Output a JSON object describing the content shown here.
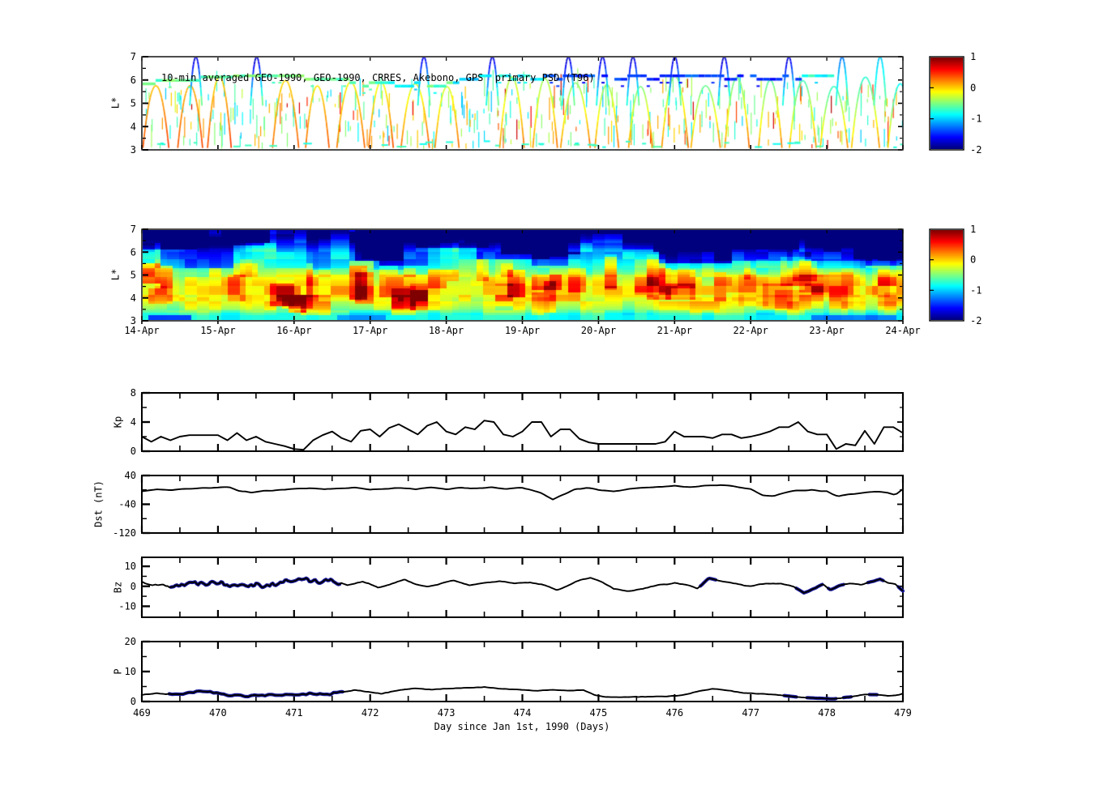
{
  "figure": {
    "background": "#ffffff"
  },
  "chart_data": [
    {
      "id": "psd_scatter",
      "type": "scatter",
      "title": "10-min averaged GEO-1990, GEO-1990, CRRES, Akebono, GPS  primary PSD (T96)",
      "ylabel": "L*",
      "ylim": [
        3,
        7
      ],
      "yticks": [
        3,
        4,
        5,
        6,
        7
      ],
      "clim": [
        -2,
        1
      ],
      "colormap": "jet",
      "colorbar_ticks": [
        1,
        0,
        -1,
        -2
      ],
      "params": {
        "seed": 7,
        "dash_count": 360,
        "arc_count": 24,
        "arc_period": 0.425,
        "tall_arcs": [
          [
            0.7,
            -1.8
          ],
          [
            1.5,
            -1.85
          ],
          [
            3.7,
            -1.7
          ],
          [
            4.6,
            -1.8
          ],
          [
            5.6,
            -1.85
          ],
          [
            6.05,
            -1.8
          ],
          [
            6.45,
            -1.85
          ],
          [
            7.0,
            -1.8
          ],
          [
            7.65,
            -1.85
          ],
          [
            8.5,
            -1.8
          ],
          [
            9.2,
            -1.3
          ],
          [
            9.7,
            -1.05
          ]
        ],
        "geo_segments": [
          [
            0,
            3.0,
            -0.55
          ],
          [
            3.0,
            3.6,
            -0.9
          ],
          [
            3.6,
            4.05,
            -0.6
          ],
          [
            4.05,
            4.6,
            -1.05
          ],
          [
            4.6,
            5.2,
            -0.85
          ],
          [
            5.2,
            8.6,
            -1.45
          ],
          [
            8.6,
            9.05,
            -0.8
          ]
        ]
      }
    },
    {
      "id": "psd_spectrogram",
      "type": "heatmap",
      "ylabel": "L*",
      "ylim": [
        3,
        7
      ],
      "yticks": [
        3,
        4,
        5,
        6,
        7
      ],
      "clim": [
        -2,
        1
      ],
      "colormap": "jet",
      "colorbar_ticks": [
        1,
        0,
        -1,
        -2
      ],
      "x_tick_labels": [
        "14-Apr",
        "15-Apr",
        "16-Apr",
        "17-Apr",
        "18-Apr",
        "19-Apr",
        "20-Apr",
        "21-Apr",
        "22-Apr",
        "23-Apr",
        "24-Apr"
      ],
      "params": {
        "seed": 11,
        "profile_L": [
          3.0,
          3.2,
          3.4,
          3.7,
          4.0,
          4.3,
          4.6,
          4.9,
          5.2,
          5.5,
          5.8,
          6.1,
          6.4,
          6.7,
          7.0
        ],
        "profile_v": [
          -0.8,
          -0.85,
          -0.45,
          -0.2,
          -0.1,
          -0.05,
          -0.1,
          -0.25,
          -0.5,
          -0.7,
          -0.8,
          -0.95,
          -1.35,
          -1.7,
          -1.85
        ],
        "late_depression_start": 4.3,
        "late_depression_rate": 0.12,
        "orange_blobs": 55,
        "dark_patches": 28,
        "noise_amp": 0.22,
        "bottom_dark": [
          [
            0.12,
            0.62,
            -1.45
          ],
          [
            2.55,
            3.2,
            -1.15
          ],
          [
            8.8,
            9.9,
            -1.25
          ]
        ]
      }
    },
    {
      "id": "kp",
      "type": "line",
      "ylabel": "Kp",
      "ylim": [
        0,
        8
      ],
      "yticks": [
        0,
        4,
        8
      ],
      "yticks_minor": [
        2,
        6
      ],
      "t0": 469,
      "dt": 0.125,
      "values": [
        2.0,
        1.3,
        2.0,
        1.5,
        2.0,
        2.2,
        2.2,
        2.2,
        2.2,
        1.5,
        2.5,
        1.5,
        2.0,
        1.3,
        1.0,
        0.7,
        0.3,
        0.2,
        1.5,
        2.2,
        2.7,
        1.8,
        1.3,
        2.8,
        3.0,
        2.0,
        3.2,
        3.7,
        3.0,
        2.3,
        3.5,
        4.0,
        2.7,
        2.3,
        3.3,
        3.0,
        4.2,
        4.0,
        2.3,
        2.0,
        2.7,
        4.0,
        4.0,
        2.0,
        3.0,
        3.0,
        1.7,
        1.2,
        1.0,
        1.0,
        1.0,
        1.0,
        1.0,
        1.0,
        1.0,
        1.3,
        2.7,
        2.0,
        2.0,
        2.0,
        1.8,
        2.3,
        2.3,
        1.8,
        2.0,
        2.3,
        2.7,
        3.3,
        3.3,
        4.0,
        2.7,
        2.3,
        2.3,
        0.3,
        1.0,
        0.8,
        2.8,
        1.0,
        3.3,
        3.3,
        2.5
      ]
    },
    {
      "id": "dst",
      "type": "line",
      "ylabel": "Dst (nT)",
      "ylim": [
        -120,
        40
      ],
      "yticks": [
        40,
        -40,
        -120
      ],
      "yticks_minor": [
        0,
        -80
      ],
      "points": [
        [
          469.0,
          -4
        ],
        [
          469.2,
          2
        ],
        [
          469.4,
          -1
        ],
        [
          469.6,
          3
        ],
        [
          469.8,
          5
        ],
        [
          470.0,
          7
        ],
        [
          470.15,
          8
        ],
        [
          470.3,
          -4
        ],
        [
          470.45,
          -7
        ],
        [
          470.6,
          -3
        ],
        [
          470.8,
          0
        ],
        [
          471.0,
          3
        ],
        [
          471.2,
          5
        ],
        [
          471.4,
          1
        ],
        [
          471.6,
          4
        ],
        [
          471.8,
          7
        ],
        [
          472.0,
          1
        ],
        [
          472.2,
          3
        ],
        [
          472.4,
          5
        ],
        [
          472.6,
          2
        ],
        [
          472.8,
          6
        ],
        [
          473.0,
          2
        ],
        [
          473.2,
          7
        ],
        [
          473.4,
          4
        ],
        [
          473.6,
          7
        ],
        [
          473.8,
          3
        ],
        [
          474.0,
          6
        ],
        [
          474.1,
          2
        ],
        [
          474.25,
          -8
        ],
        [
          474.4,
          -27
        ],
        [
          474.55,
          -12
        ],
        [
          474.7,
          2
        ],
        [
          474.85,
          5
        ],
        [
          475.0,
          0
        ],
        [
          475.2,
          -3
        ],
        [
          475.4,
          2
        ],
        [
          475.6,
          6
        ],
        [
          475.8,
          9
        ],
        [
          476.0,
          11
        ],
        [
          476.2,
          8
        ],
        [
          476.4,
          12
        ],
        [
          476.6,
          14
        ],
        [
          476.8,
          9
        ],
        [
          477.0,
          2
        ],
        [
          477.15,
          -14
        ],
        [
          477.3,
          -18
        ],
        [
          477.45,
          -8
        ],
        [
          477.6,
          -2
        ],
        [
          477.8,
          0
        ],
        [
          478.0,
          -4
        ],
        [
          478.15,
          -18
        ],
        [
          478.3,
          -12
        ],
        [
          478.5,
          -8
        ],
        [
          478.65,
          -4
        ],
        [
          478.8,
          -8
        ],
        [
          478.9,
          -14
        ],
        [
          479.0,
          2
        ]
      ]
    },
    {
      "id": "bz",
      "type": "line",
      "ylabel": "Bz",
      "ylim": [
        -15.5,
        14.5
      ],
      "yticks": [
        10,
        0,
        -10
      ],
      "yticks_minor": [
        5,
        -5
      ],
      "highlight_color": "#1b1b9e",
      "highlight_ranges": [
        [
          469.36,
          471.6
        ],
        [
          476.33,
          476.55
        ],
        [
          477.58,
          477.95
        ],
        [
          478.0,
          478.22
        ],
        [
          478.52,
          478.75
        ],
        [
          478.92,
          479.0
        ]
      ],
      "noisy_ranges": [
        [
          469.34,
          471.62
        ]
      ],
      "points": [
        [
          469.0,
          2.5
        ],
        [
          469.15,
          0.8
        ],
        [
          469.35,
          0.5
        ],
        [
          469.55,
          1.2
        ],
        [
          469.75,
          1.8
        ],
        [
          469.95,
          2.2
        ],
        [
          470.15,
          0.8
        ],
        [
          470.35,
          1.6
        ],
        [
          470.55,
          0.6
        ],
        [
          470.75,
          1.2
        ],
        [
          470.95,
          2.8
        ],
        [
          471.15,
          3.2
        ],
        [
          471.35,
          2.6
        ],
        [
          471.55,
          2.8
        ],
        [
          471.7,
          0.6
        ],
        [
          471.9,
          2.2
        ],
        [
          472.1,
          -0.6
        ],
        [
          472.3,
          1.2
        ],
        [
          472.45,
          3.6
        ],
        [
          472.6,
          1.2
        ],
        [
          472.75,
          -0.4
        ],
        [
          472.95,
          1.8
        ],
        [
          473.1,
          2.8
        ],
        [
          473.3,
          0.6
        ],
        [
          473.5,
          1.4
        ],
        [
          473.7,
          2.4
        ],
        [
          473.9,
          1.2
        ],
        [
          474.1,
          1.8
        ],
        [
          474.3,
          0.4
        ],
        [
          474.45,
          -2.0
        ],
        [
          474.6,
          0.6
        ],
        [
          474.75,
          3.2
        ],
        [
          474.9,
          4.2
        ],
        [
          475.05,
          1.8
        ],
        [
          475.2,
          -1.4
        ],
        [
          475.4,
          -2.6
        ],
        [
          475.6,
          -1.0
        ],
        [
          475.8,
          0.6
        ],
        [
          476.0,
          1.8
        ],
        [
          476.15,
          0.6
        ],
        [
          476.3,
          -1.0
        ],
        [
          476.45,
          4.0
        ],
        [
          476.6,
          2.4
        ],
        [
          476.8,
          1.2
        ],
        [
          477.0,
          0.2
        ],
        [
          477.2,
          1.4
        ],
        [
          477.4,
          1.2
        ],
        [
          477.55,
          0.2
        ],
        [
          477.7,
          -3.2
        ],
        [
          477.85,
          -0.6
        ],
        [
          477.95,
          1.4
        ],
        [
          478.05,
          -1.6
        ],
        [
          478.15,
          0.4
        ],
        [
          478.3,
          1.4
        ],
        [
          478.45,
          1.0
        ],
        [
          478.6,
          2.4
        ],
        [
          478.7,
          3.4
        ],
        [
          478.8,
          1.6
        ],
        [
          478.9,
          1.0
        ],
        [
          479.0,
          -2.2
        ]
      ]
    },
    {
      "id": "p",
      "type": "line",
      "ylabel": "P",
      "ylim": [
        0,
        20
      ],
      "yticks": [
        0,
        10,
        20
      ],
      "yticks_minor": [
        5,
        15
      ],
      "highlight_color": "#1b1b9e",
      "highlight_ranges": [
        [
          469.34,
          471.64
        ],
        [
          477.42,
          477.6
        ],
        [
          477.72,
          478.12
        ],
        [
          478.2,
          478.33
        ],
        [
          478.54,
          478.66
        ]
      ],
      "noisy_ranges": [
        [
          469.32,
          471.66
        ]
      ],
      "xlabel": "Day since Jan 1st, 1990 (Days)",
      "xticks": [
        469,
        470,
        471,
        472,
        473,
        474,
        475,
        476,
        477,
        478,
        479
      ],
      "points": [
        [
          469.0,
          2.2
        ],
        [
          469.2,
          2.8
        ],
        [
          469.4,
          2.2
        ],
        [
          469.6,
          2.9
        ],
        [
          469.85,
          3.4
        ],
        [
          470.0,
          2.6
        ],
        [
          470.2,
          2.0
        ],
        [
          470.4,
          1.8
        ],
        [
          470.6,
          2.2
        ],
        [
          470.8,
          2.1
        ],
        [
          471.0,
          2.2
        ],
        [
          471.2,
          2.6
        ],
        [
          471.4,
          2.2
        ],
        [
          471.6,
          3.0
        ],
        [
          471.8,
          3.8
        ],
        [
          472.0,
          3.1
        ],
        [
          472.15,
          2.6
        ],
        [
          472.4,
          3.9
        ],
        [
          472.6,
          4.4
        ],
        [
          472.8,
          4.0
        ],
        [
          473.0,
          4.3
        ],
        [
          473.2,
          4.5
        ],
        [
          473.5,
          4.8
        ],
        [
          473.7,
          4.3
        ],
        [
          474.0,
          3.9
        ],
        [
          474.2,
          3.6
        ],
        [
          474.4,
          3.9
        ],
        [
          474.6,
          3.6
        ],
        [
          474.8,
          3.8
        ],
        [
          474.95,
          2.2
        ],
        [
          475.1,
          1.5
        ],
        [
          475.3,
          1.4
        ],
        [
          475.6,
          1.6
        ],
        [
          475.9,
          1.7
        ],
        [
          476.1,
          2.1
        ],
        [
          476.3,
          3.3
        ],
        [
          476.5,
          4.3
        ],
        [
          476.7,
          3.7
        ],
        [
          476.9,
          2.9
        ],
        [
          477.1,
          2.6
        ],
        [
          477.3,
          2.3
        ],
        [
          477.5,
          1.8
        ],
        [
          477.7,
          1.3
        ],
        [
          477.9,
          1.1
        ],
        [
          478.1,
          0.9
        ],
        [
          478.3,
          1.5
        ],
        [
          478.5,
          2.4
        ],
        [
          478.65,
          2.3
        ],
        [
          478.8,
          1.9
        ],
        [
          478.95,
          2.2
        ],
        [
          479.0,
          2.7
        ]
      ]
    }
  ]
}
